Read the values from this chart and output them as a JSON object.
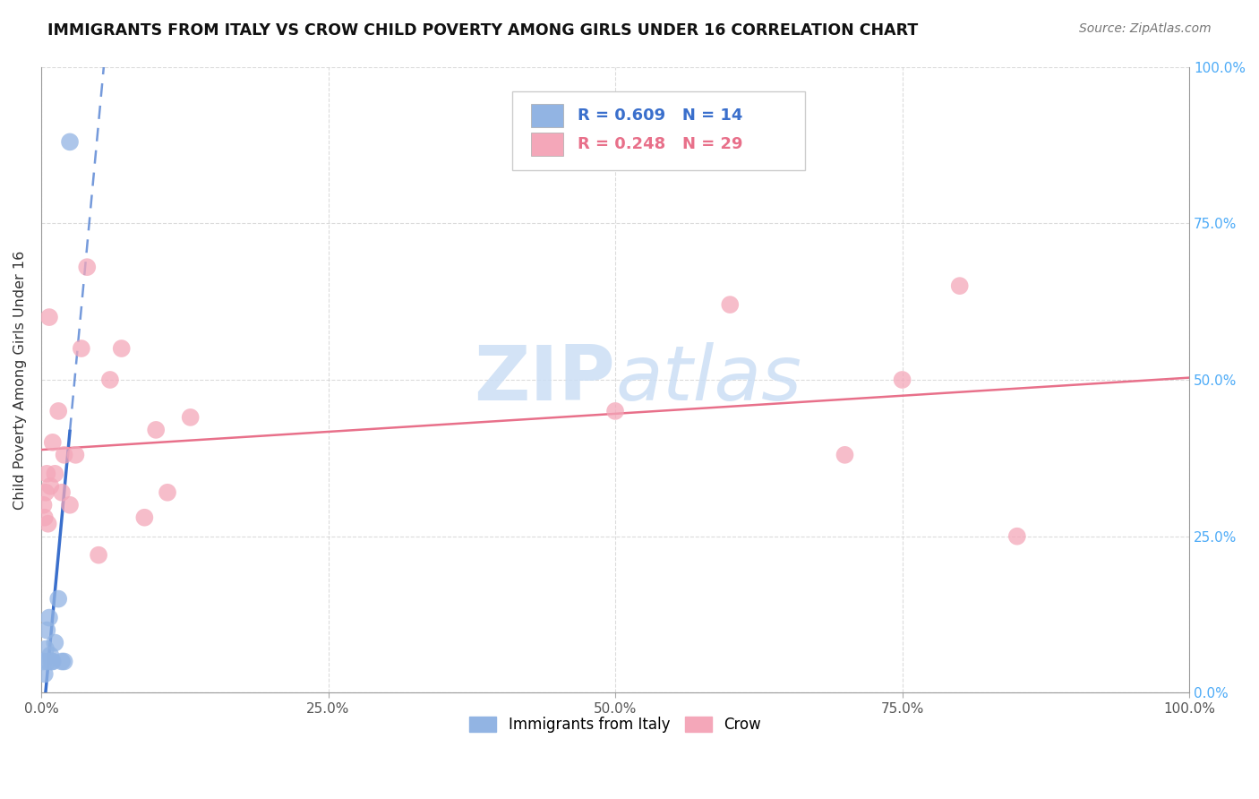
{
  "title": "IMMIGRANTS FROM ITALY VS CROW CHILD POVERTY AMONG GIRLS UNDER 16 CORRELATION CHART",
  "source": "Source: ZipAtlas.com",
  "ylabel": "Child Poverty Among Girls Under 16",
  "xlim": [
    0,
    100
  ],
  "ylim": [
    0,
    100
  ],
  "xtick_vals": [
    0,
    25,
    50,
    75,
    100
  ],
  "ytick_vals": [
    0,
    25,
    50,
    75,
    100
  ],
  "legend_italy_label": "Immigrants from Italy",
  "legend_crow_label": "Crow",
  "italy_R": "0.609",
  "italy_N": "14",
  "crow_R": "0.248",
  "crow_N": "29",
  "italy_color": "#92b4e3",
  "crow_color": "#f4a7b9",
  "italy_line_color": "#3a6fcc",
  "crow_line_color": "#e8708a",
  "watermark_color": "#ccdff5",
  "italy_x": [
    0.2,
    0.3,
    0.4,
    0.5,
    0.6,
    0.7,
    0.8,
    0.9,
    1.0,
    1.2,
    1.5,
    1.8,
    2.0,
    2.5
  ],
  "italy_y": [
    5,
    3,
    7,
    10,
    5,
    12,
    6,
    5,
    5,
    8,
    15,
    5,
    5,
    88
  ],
  "crow_x": [
    0.2,
    0.3,
    0.4,
    0.5,
    0.6,
    0.7,
    0.8,
    1.0,
    1.2,
    1.5,
    1.8,
    2.0,
    2.5,
    3.0,
    3.5,
    4.0,
    5.0,
    6.0,
    7.0,
    9.0,
    10.0,
    11.0,
    13.0,
    50.0,
    60.0,
    70.0,
    75.0,
    80.0,
    85.0
  ],
  "crow_y": [
    30,
    28,
    32,
    35,
    27,
    60,
    33,
    40,
    35,
    45,
    32,
    38,
    30,
    38,
    55,
    68,
    22,
    50,
    55,
    28,
    42,
    32,
    44,
    45,
    62,
    38,
    50,
    65,
    25
  ]
}
